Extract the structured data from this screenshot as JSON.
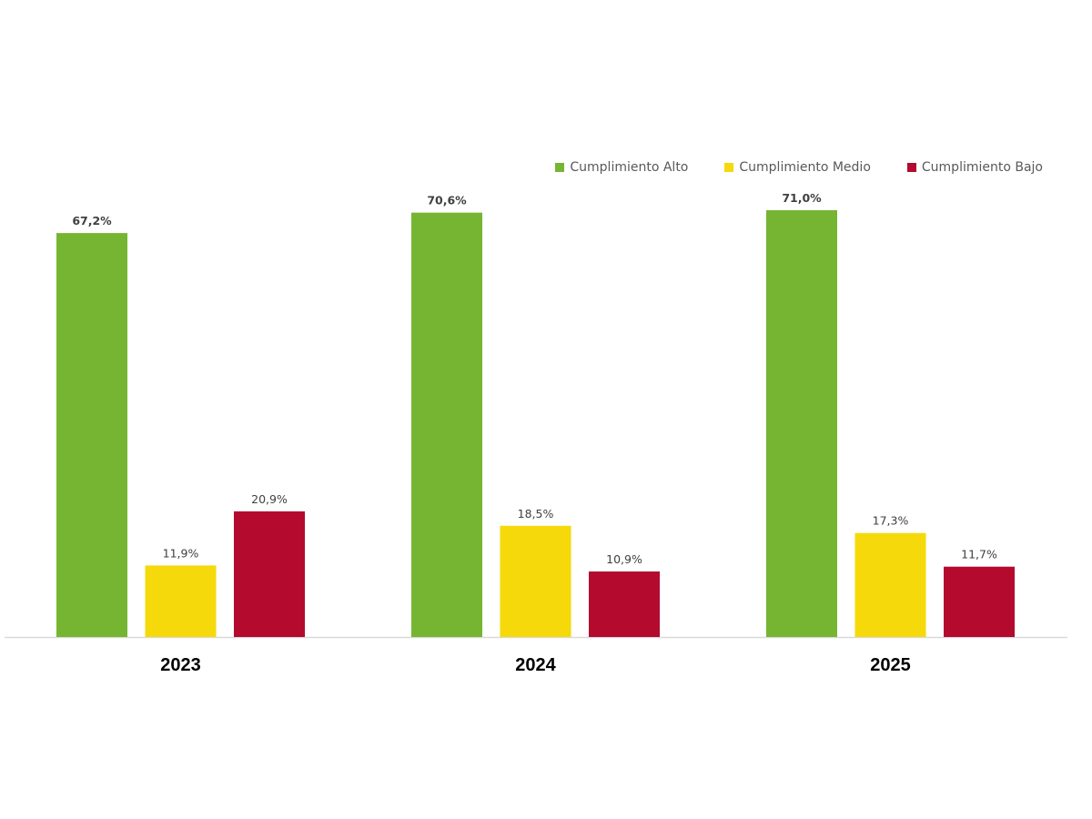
{
  "chart_data": {
    "type": "bar",
    "title": "",
    "xlabel": "",
    "ylabel": "",
    "ylim": [
      0,
      71
    ],
    "grid": false,
    "legend_position": "top-right",
    "value_suffix": "%",
    "decimal_separator": ",",
    "categories": [
      "2023",
      "2024",
      "2025"
    ],
    "series": [
      {
        "name": "Cumplimiento Alto",
        "color": "#76B532",
        "values": [
          67.2,
          70.6,
          71.0
        ],
        "label_weight": "bold"
      },
      {
        "name": "Cumplimiento Medio",
        "color": "#F5D90A",
        "values": [
          11.9,
          18.5,
          17.3
        ],
        "label_weight": "normal"
      },
      {
        "name": "Cumplimiento Bajo",
        "color": "#B40A2E",
        "values": [
          20.9,
          10.9,
          11.7
        ],
        "label_weight": "normal"
      }
    ],
    "value_labels": [
      [
        "67,2%",
        "70,6%",
        "71,0%"
      ],
      [
        "11,9%",
        "18,5%",
        "17,3%"
      ],
      [
        "20,9%",
        "10,9%",
        "11,7%"
      ]
    ]
  },
  "legend": {
    "items": [
      {
        "label": "Cumplimiento Alto",
        "color": "#76B532"
      },
      {
        "label": "Cumplimiento Medio",
        "color": "#F5D90A"
      },
      {
        "label": "Cumplimiento Bajo",
        "color": "#B40A2E"
      }
    ]
  },
  "axis": {
    "baseline_color": "#D9D9D9"
  }
}
